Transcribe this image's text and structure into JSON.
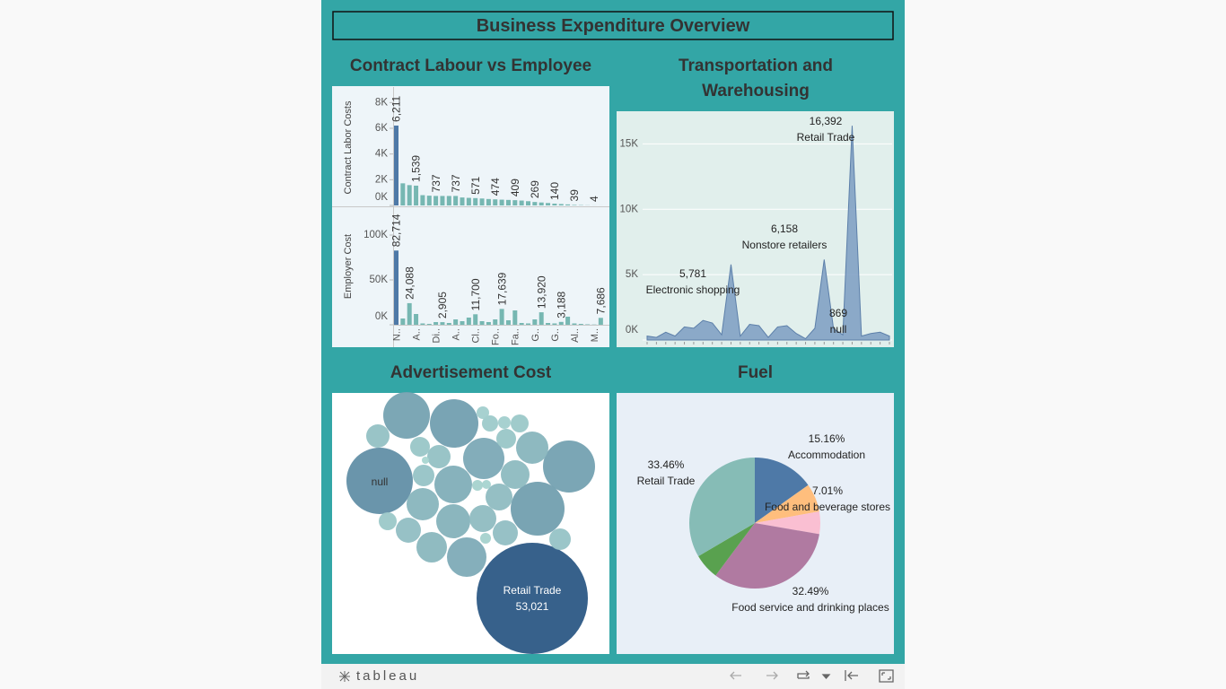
{
  "dashboard_title": "Business Expenditure Overview",
  "toolbar_logo": "tableau",
  "chart_data": [
    {
      "type": "bar",
      "title": "Contract Labour vs Employee",
      "categories": [
        "N..",
        null,
        null,
        "A..",
        null,
        null,
        "Di..",
        null,
        null,
        "A..",
        null,
        null,
        "Cl..",
        null,
        null,
        "Fo..",
        null,
        null,
        "Fa..",
        null,
        null,
        "G..",
        null,
        null,
        "G..",
        null,
        null,
        "Al..",
        null,
        null,
        "M..",
        null
      ],
      "highlight": {
        "index": 0,
        "color": "#4e79a7"
      },
      "series": [
        {
          "name": "Contract Labor Costs",
          "color": "#76b7b2",
          "values": [
            6211,
            1720,
            1580,
            1539,
            800,
            760,
            737,
            737,
            737,
            737,
            620,
            590,
            571,
            540,
            500,
            474,
            450,
            430,
            409,
            380,
            330,
            269,
            230,
            190,
            140,
            110,
            80,
            39,
            25,
            12,
            4,
            2
          ],
          "value_labels": [
            "6,211",
            null,
            null,
            "1,539",
            null,
            null,
            "737",
            null,
            null,
            "737",
            null,
            null,
            "571",
            null,
            null,
            "474",
            null,
            null,
            "409",
            null,
            null,
            "269",
            null,
            null,
            "140",
            null,
            null,
            "39",
            null,
            null,
            "4",
            null
          ],
          "ylim": [
            0,
            9000
          ],
          "yticks": [
            {
              "value": 0,
              "label": "0K"
            },
            {
              "value": 2000,
              "label": "2K"
            },
            {
              "value": 4000,
              "label": "4K"
            },
            {
              "value": 6000,
              "label": "6K"
            },
            {
              "value": 8000,
              "label": "8K"
            }
          ]
        },
        {
          "name": "Employer Cost",
          "color": "#76b7b2",
          "values": [
            82714,
            7000,
            24088,
            12000,
            1500,
            1000,
            3000,
            2905,
            2000,
            6000,
            4000,
            8000,
            11700,
            4000,
            3000,
            6000,
            17639,
            5000,
            16000,
            2000,
            1500,
            6000,
            13920,
            2000,
            1500,
            3188,
            9000,
            1500,
            1000,
            500,
            300,
            7686
          ],
          "value_labels": [
            "82,714",
            null,
            "24,088",
            null,
            null,
            null,
            null,
            "2,905",
            null,
            null,
            null,
            null,
            "11,700",
            null,
            null,
            null,
            "17,639",
            null,
            null,
            null,
            null,
            null,
            "13,920",
            null,
            null,
            "3,188",
            null,
            null,
            null,
            null,
            null,
            "7,686"
          ],
          "ylim": [
            0,
            130000
          ],
          "yticks": [
            {
              "value": 0,
              "label": "0K"
            },
            {
              "value": 50000,
              "label": "50K"
            },
            {
              "value": 100000,
              "label": "100K"
            }
          ]
        }
      ]
    },
    {
      "type": "area",
      "title": "Transportation and Warehousing",
      "categories": [
        null,
        null,
        null,
        null,
        null,
        null,
        null,
        null,
        null,
        "Electronic shopping",
        null,
        null,
        null,
        null,
        null,
        null,
        null,
        null,
        null,
        "Nonstore retailers",
        "null",
        null,
        "Retail Trade",
        null,
        null,
        null,
        null
      ],
      "values": [
        300,
        200,
        600,
        300,
        1000,
        900,
        1500,
        1300,
        400,
        5781,
        300,
        1200,
        1100,
        200,
        1000,
        1100,
        500,
        100,
        900,
        6158,
        869,
        400,
        16392,
        300,
        500,
        600,
        300
      ],
      "value_labels": [
        null,
        null,
        null,
        null,
        null,
        null,
        null,
        null,
        null,
        "5,781",
        null,
        null,
        null,
        null,
        null,
        null,
        null,
        null,
        null,
        "6,158",
        "869",
        null,
        "16,392",
        null,
        null,
        null,
        null
      ],
      "color": "#7b9cc2",
      "ylim": [
        0,
        17500
      ],
      "yticks": [
        {
          "value": 0,
          "label": "0K"
        },
        {
          "value": 5000,
          "label": "5K"
        },
        {
          "value": 10000,
          "label": "10K"
        },
        {
          "value": 15000,
          "label": "15K"
        }
      ],
      "grid": true
    },
    {
      "type": "bubble",
      "title": "Advertisement Cost",
      "categories": [
        "Retail Trade",
        "null",
        null,
        null,
        null,
        null,
        null,
        null,
        null,
        null,
        null,
        null,
        null,
        null,
        null,
        null,
        null,
        null,
        null,
        null,
        null,
        null,
        null,
        null,
        null,
        null,
        null,
        null,
        null,
        null,
        null,
        null,
        null
      ],
      "values": [
        53021,
        18883,
        9324,
        10055,
        11600,
        12416,
        7296,
        4469,
        6092,
        4469,
        4978,
        6675,
        3985,
        2703,
        3103,
        3103,
        3530,
        2703,
        2331,
        1669,
        1986,
        2331,
        1379,
        1986,
        1669,
        1379,
        1117,
        676,
        676,
        496,
        345,
        496,
        221
      ],
      "value_labels": [
        "53,021",
        null,
        null,
        null,
        null,
        null,
        null,
        null,
        null,
        null,
        null,
        null,
        null,
        null,
        null,
        null,
        null,
        null,
        null,
        null,
        null,
        null,
        null,
        null,
        null,
        null,
        null,
        null,
        null,
        null,
        null,
        null,
        null
      ],
      "color_range": [
        "#b3e0d7",
        "#2c5985"
      ]
    },
    {
      "type": "pie",
      "title": "Fuel",
      "categories": [
        "Accommodation",
        "Food and beverage stores",
        null,
        "Food service and drinking places",
        null,
        "Retail Trade"
      ],
      "values": [
        15.16,
        7.01,
        5.55,
        32.49,
        6.33,
        33.46
      ],
      "value_labels": [
        "15.16%",
        "7.01%",
        null,
        "32.49%",
        null,
        "33.46%"
      ],
      "colors": [
        "#4e79a7",
        "#ffbe7d",
        "#fabfd2",
        "#b07aa1",
        "#59a14f",
        "#86bcb6"
      ]
    }
  ]
}
